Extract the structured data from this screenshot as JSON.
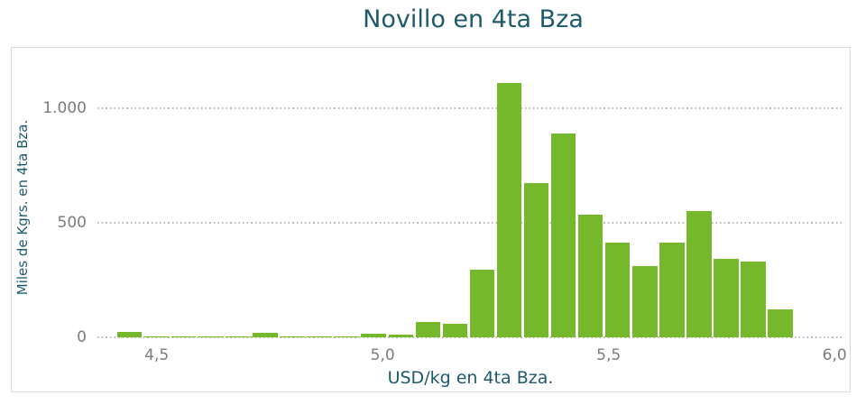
{
  "chart_data": {
    "type": "bar",
    "subtype": "histogram",
    "title": "Novillo en 4ta Bza",
    "xlabel": "USD/kg en 4ta Bza.",
    "ylabel": "Miles de Kgrs. en 4ta Bza.",
    "bin_start": 4.41,
    "bin_width": 0.06,
    "bin_edges": [
      4.41,
      4.47,
      4.53,
      4.59,
      4.65,
      4.71,
      4.77,
      4.83,
      4.89,
      4.95,
      5.01,
      5.07,
      5.13,
      5.19,
      5.25,
      5.31,
      5.37,
      5.43,
      5.49,
      5.55,
      5.61,
      5.67,
      5.73,
      5.79,
      5.85,
      5.91
    ],
    "values": [
      25,
      5,
      5,
      5,
      5,
      20,
      5,
      5,
      5,
      17,
      13,
      68,
      62,
      295,
      1110,
      672,
      888,
      537,
      412,
      310,
      412,
      553,
      344,
      330,
      122
    ],
    "x_ticks": [
      {
        "label": "4,5",
        "value": 4.5
      },
      {
        "label": "5,0",
        "value": 5.0
      },
      {
        "label": "5,5",
        "value": 5.5
      },
      {
        "label": "6,0",
        "value": 6.0
      }
    ],
    "y_ticks": [
      {
        "label": "1.000",
        "value": 1000
      },
      {
        "label": "500",
        "value": 500
      },
      {
        "label": "0",
        "value": 0
      }
    ],
    "xlim": [
      4.37,
      6.04
    ],
    "ylim": [
      0,
      1265
    ],
    "grid": "horizontal-dotted",
    "legend": "none",
    "colors": {
      "bar": "#76B82B",
      "title": "#1D5B6C",
      "axis_label": "#1D5B6C",
      "tick_label": "#7C7C7C",
      "gridline": "#B9B9B9",
      "plot_border": "#DCDCDC",
      "background": "#FFFFFF"
    }
  }
}
